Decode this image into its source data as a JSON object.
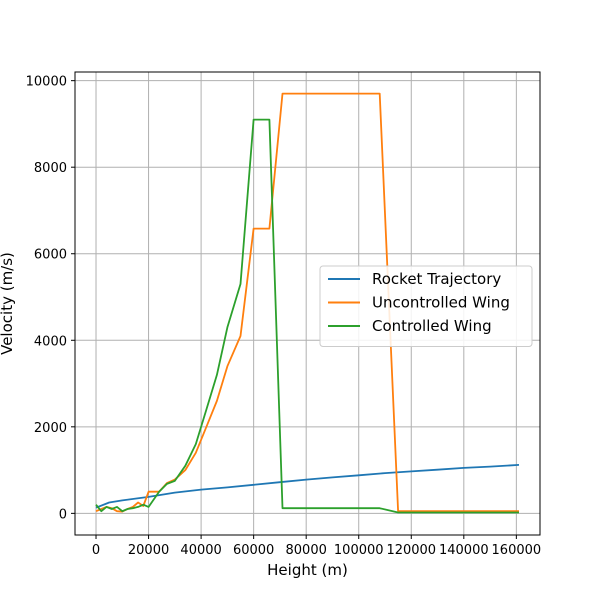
{
  "chart_data": {
    "type": "line",
    "title": "",
    "xlabel": "Height (m)",
    "ylabel": "Velocity (m/s)",
    "xlim": [
      -8000,
      169000
    ],
    "ylim": [
      -500,
      10200
    ],
    "xticks": [
      0,
      20000,
      40000,
      60000,
      80000,
      100000,
      120000,
      140000,
      160000
    ],
    "yticks": [
      0,
      2000,
      4000,
      6000,
      8000,
      10000
    ],
    "grid": true,
    "legend_position": "center-right",
    "series": [
      {
        "name": "Rocket Trajectory",
        "color": "#1f77b4",
        "x": [
          0,
          5000,
          10000,
          20000,
          30000,
          40000,
          50000,
          60000,
          70000,
          80000,
          90000,
          100000,
          110000,
          120000,
          130000,
          140000,
          150000,
          161000
        ],
        "y": [
          130,
          250,
          300,
          380,
          480,
          550,
          600,
          660,
          720,
          780,
          830,
          880,
          930,
          970,
          1010,
          1050,
          1080,
          1120
        ]
      },
      {
        "name": "Uncontrolled Wing",
        "color": "#ff7f0e",
        "x": [
          0,
          2000,
          4000,
          6000,
          8000,
          10000,
          12000,
          14000,
          16000,
          18000,
          20000,
          22000,
          24000,
          27000,
          30000,
          34000,
          38000,
          42000,
          46000,
          50000,
          55000,
          60000,
          61000,
          66000,
          71000,
          108000,
          115000,
          161000
        ],
        "y": [
          50,
          100,
          150,
          120,
          50,
          40,
          100,
          150,
          250,
          170,
          500,
          500,
          500,
          700,
          780,
          1000,
          1400,
          2000,
          2600,
          3400,
          4100,
          6580,
          6580,
          6580,
          9700,
          9700,
          50,
          50
        ]
      },
      {
        "name": "Controlled Wing",
        "color": "#2ca02c",
        "x": [
          0,
          2000,
          4000,
          6000,
          8000,
          10000,
          12000,
          14000,
          16000,
          18000,
          20000,
          24000,
          27000,
          30000,
          34000,
          38000,
          42000,
          46000,
          50000,
          55000,
          60000,
          61000,
          66000,
          71000,
          108000,
          115000,
          161000
        ],
        "y": [
          200,
          50,
          150,
          100,
          150,
          50,
          100,
          120,
          150,
          200,
          150,
          500,
          680,
          750,
          1100,
          1600,
          2400,
          3200,
          4300,
          5300,
          9100,
          9100,
          9100,
          120,
          120,
          20,
          20
        ]
      }
    ]
  }
}
